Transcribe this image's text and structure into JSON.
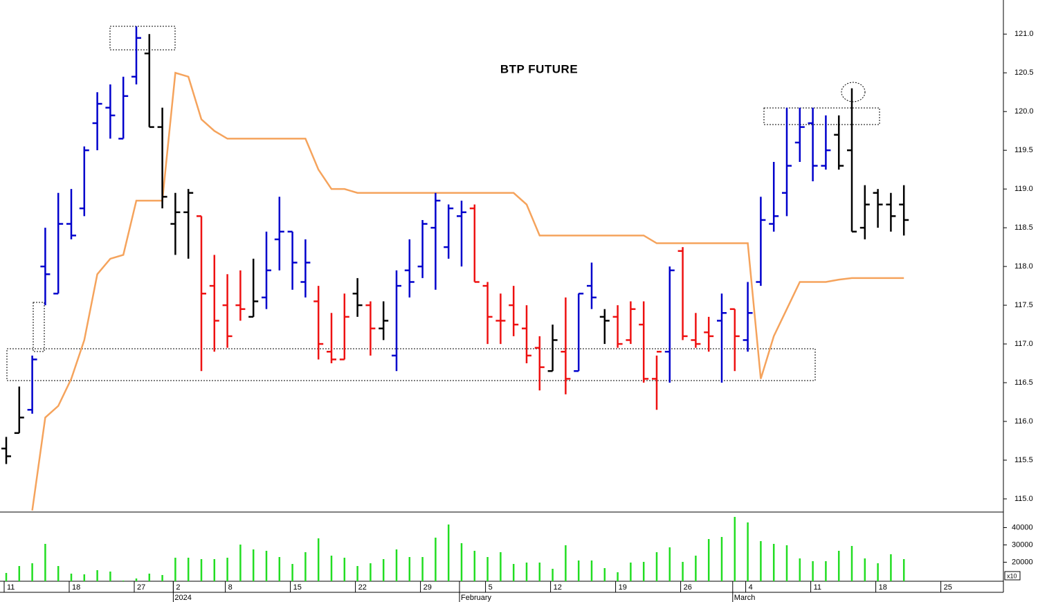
{
  "chart_data": {
    "type": "ohlc",
    "title": "BTP FUTURE",
    "categories": [
      "11",
      null,
      null,
      null,
      null,
      "18",
      null,
      null,
      null,
      null,
      "27",
      null,
      null,
      "2",
      null,
      null,
      null,
      "8",
      null,
      null,
      null,
      null,
      "15",
      null,
      null,
      null,
      null,
      "22",
      null,
      null,
      null,
      null,
      "29",
      null,
      null,
      null,
      null,
      "5",
      null,
      null,
      null,
      null,
      "12",
      null,
      null,
      null,
      null,
      "19",
      null,
      null,
      null,
      null,
      "26",
      null,
      null,
      null,
      null,
      "4",
      null,
      null,
      null,
      null,
      "11",
      null,
      null,
      null,
      null,
      "18",
      null,
      null,
      null,
      null,
      "25"
    ],
    "months": [
      null,
      null,
      null,
      null,
      null,
      null,
      null,
      null,
      null,
      null,
      null,
      null,
      null,
      "2024",
      null,
      null,
      null,
      null,
      null,
      null,
      null,
      null,
      null,
      null,
      null,
      null,
      null,
      null,
      null,
      null,
      null,
      null,
      null,
      null,
      null,
      "February",
      null,
      null,
      null,
      null,
      null,
      null,
      null,
      null,
      null,
      null,
      null,
      null,
      null,
      null,
      null,
      null,
      null,
      null,
      null,
      null,
      "March",
      null,
      null,
      null,
      null,
      null,
      null,
      null,
      null,
      null,
      null,
      null,
      null,
      null,
      null,
      null,
      null
    ],
    "open": [
      115.65,
      115.85,
      116.15,
      118.0,
      117.65,
      118.55,
      118.75,
      119.85,
      120.05,
      119.65,
      120.45,
      120.75,
      119.8,
      118.55,
      118.7,
      118.65,
      117.75,
      117.5,
      117.5,
      117.35,
      117.6,
      118.35,
      118.45,
      117.8,
      117.55,
      116.9,
      116.8,
      117.65,
      117.5,
      117.2,
      116.85,
      117.95,
      118.0,
      118.5,
      118.25,
      118.65,
      118.75,
      117.75,
      117.3,
      117.5,
      117.2,
      116.95,
      116.65,
      116.9,
      116.65,
      117.75,
      117.35,
      117.35,
      117.05,
      117.25,
      116.55,
      116.9,
      118.2,
      117.05,
      117.15,
      117.3,
      117.45,
      117.05,
      117.8,
      118.55,
      118.95,
      119.6,
      119.85,
      119.3,
      119.7,
      119.5,
      118.5,
      118.95,
      118.8,
      118.8,
      null,
      null,
      null
    ],
    "high": [
      115.8,
      116.45,
      116.85,
      118.5,
      118.95,
      119.0,
      119.55,
      120.25,
      120.35,
      120.45,
      121.1,
      121.0,
      120.05,
      118.95,
      119.0,
      118.65,
      118.15,
      117.9,
      117.95,
      118.1,
      118.45,
      118.9,
      118.45,
      118.35,
      117.75,
      117.4,
      117.65,
      117.85,
      117.55,
      117.55,
      117.95,
      118.35,
      118.6,
      118.95,
      118.8,
      118.85,
      118.8,
      117.8,
      117.65,
      117.75,
      117.5,
      117.1,
      117.25,
      117.6,
      117.65,
      118.05,
      117.45,
      117.5,
      117.55,
      117.55,
      116.85,
      118.0,
      118.25,
      117.4,
      117.35,
      117.65,
      117.45,
      117.8,
      118.9,
      119.35,
      120.05,
      120.05,
      120.05,
      119.95,
      119.95,
      120.3,
      119.05,
      119.0,
      118.95,
      119.05,
      null,
      null,
      null
    ],
    "low": [
      115.45,
      115.85,
      116.1,
      117.5,
      117.65,
      118.35,
      118.65,
      119.5,
      119.65,
      119.65,
      120.35,
      119.8,
      118.75,
      118.15,
      118.1,
      116.65,
      116.9,
      116.95,
      117.3,
      117.35,
      117.45,
      117.95,
      117.7,
      117.6,
      116.8,
      116.75,
      116.8,
      117.35,
      116.85,
      117.05,
      116.65,
      117.6,
      117.85,
      117.7,
      118.1,
      118.0,
      117.8,
      117.0,
      117.0,
      117.1,
      116.75,
      116.4,
      116.65,
      116.35,
      116.65,
      117.45,
      117.0,
      116.95,
      117.0,
      116.5,
      116.15,
      116.5,
      117.05,
      116.95,
      116.9,
      116.5,
      116.65,
      116.9,
      117.75,
      118.45,
      118.65,
      119.35,
      119.1,
      119.25,
      119.25,
      118.45,
      118.35,
      118.5,
      118.45,
      118.4,
      null,
      null,
      null
    ],
    "close": [
      115.55,
      116.05,
      116.8,
      117.9,
      118.55,
      118.4,
      119.5,
      120.1,
      119.95,
      120.2,
      120.95,
      119.8,
      118.9,
      118.7,
      118.95,
      117.65,
      117.3,
      117.1,
      117.45,
      117.55,
      117.95,
      118.45,
      118.05,
      118.05,
      117.0,
      116.8,
      117.35,
      117.5,
      117.2,
      117.3,
      117.75,
      117.8,
      118.55,
      118.85,
      118.75,
      118.7,
      117.8,
      117.35,
      117.3,
      117.25,
      116.85,
      116.7,
      117.05,
      116.55,
      117.65,
      117.6,
      117.3,
      117.0,
      117.45,
      116.55,
      116.9,
      117.95,
      117.1,
      117.0,
      117.1,
      117.4,
      117.1,
      117.4,
      118.6,
      118.65,
      119.3,
      119.8,
      119.3,
      119.5,
      119.3,
      118.45,
      118.8,
      118.8,
      118.65,
      118.6,
      null,
      null,
      null
    ],
    "bar_colors": [
      "#000000",
      "#000000",
      "#0000cc",
      "#0000cc",
      "#0000cc",
      "#0000cc",
      "#0000cc",
      "#0000cc",
      "#0000cc",
      "#0000cc",
      "#0000cc",
      "#000000",
      "#000000",
      "#000000",
      "#000000",
      "#ee1111",
      "#ee1111",
      "#ee1111",
      "#ee1111",
      "#000000",
      "#0000cc",
      "#0000cc",
      "#0000cc",
      "#0000cc",
      "#ee1111",
      "#ee1111",
      "#ee1111",
      "#000000",
      "#ee1111",
      "#000000",
      "#0000cc",
      "#0000cc",
      "#0000cc",
      "#0000cc",
      "#0000cc",
      "#0000cc",
      "#ee1111",
      "#ee1111",
      "#ee1111",
      "#ee1111",
      "#ee1111",
      "#ee1111",
      "#000000",
      "#ee1111",
      "#0000cc",
      "#0000cc",
      "#000000",
      "#ee1111",
      "#ee1111",
      "#ee1111",
      "#ee1111",
      "#0000cc",
      "#ee1111",
      "#ee1111",
      "#ee1111",
      "#0000cc",
      "#ee1111",
      "#0000cc",
      "#0000cc",
      "#0000cc",
      "#0000cc",
      "#0000cc",
      "#0000cc",
      "#0000cc",
      "#000000",
      "#000000",
      "#000000",
      "#000000",
      "#000000",
      "#000000",
      null,
      null,
      null
    ],
    "overlay": {
      "color": "#f5a35c",
      "values": [
        null,
        null,
        114.85,
        116.05,
        116.2,
        116.55,
        117.05,
        117.9,
        118.1,
        118.15,
        118.85,
        118.85,
        118.85,
        120.5,
        120.45,
        119.9,
        119.75,
        119.65,
        119.65,
        119.65,
        119.65,
        119.65,
        119.65,
        119.65,
        119.25,
        119.0,
        119.0,
        118.95,
        118.95,
        118.95,
        118.95,
        118.95,
        118.95,
        118.95,
        118.95,
        118.95,
        118.95,
        118.95,
        118.95,
        118.95,
        118.8,
        118.4,
        118.4,
        118.4,
        118.4,
        118.4,
        118.4,
        118.4,
        118.4,
        118.4,
        118.3,
        118.3,
        118.3,
        118.3,
        118.3,
        118.3,
        118.3,
        118.3,
        116.55,
        117.1,
        117.45,
        117.8,
        117.8,
        117.8,
        117.83,
        117.85,
        117.85,
        117.85,
        117.85,
        117.85,
        null,
        null,
        null
      ]
    },
    "ylim": [
      114.83,
      121.44
    ],
    "yticks": [
      {
        "value": 115,
        "label": "115.0"
      },
      115.5,
      {
        "value": 116,
        "label": "116.0"
      },
      116.5,
      {
        "value": 117,
        "label": "117.0"
      },
      117.5,
      {
        "value": 118,
        "label": "118.0"
      },
      118.5,
      {
        "value": 119,
        "label": "119.0"
      },
      119.5,
      {
        "value": 120,
        "label": "120.0"
      },
      120.5,
      {
        "value": 121,
        "label": "121.0"
      }
    ],
    "volume": {
      "color": "#22dd22",
      "unit_label": "x10",
      "values": [
        13800,
        17800,
        19400,
        30600,
        17800,
        13400,
        13000,
        15400,
        14600,
        9400,
        10600,
        13400,
        12600,
        22600,
        22600,
        21800,
        21800,
        22600,
        30200,
        27400,
        26600,
        23000,
        19000,
        25800,
        33800,
        23800,
        22600,
        17800,
        19400,
        21800,
        27400,
        23000,
        23000,
        34200,
        41800,
        31000,
        26600,
        23000,
        25800,
        19000,
        19800,
        19800,
        16200,
        29800,
        21000,
        21000,
        16600,
        14200,
        19800,
        20200,
        25800,
        28600,
        20200,
        23800,
        33400,
        34600,
        46200,
        43000,
        32200,
        30600,
        29800,
        22200,
        20600,
        20600,
        26600,
        29400,
        22200,
        19400,
        24600,
        21800,
        null,
        null,
        null
      ],
      "ylim": [
        9000,
        47000
      ],
      "yticks": [
        20000,
        30000,
        40000
      ]
    }
  }
}
